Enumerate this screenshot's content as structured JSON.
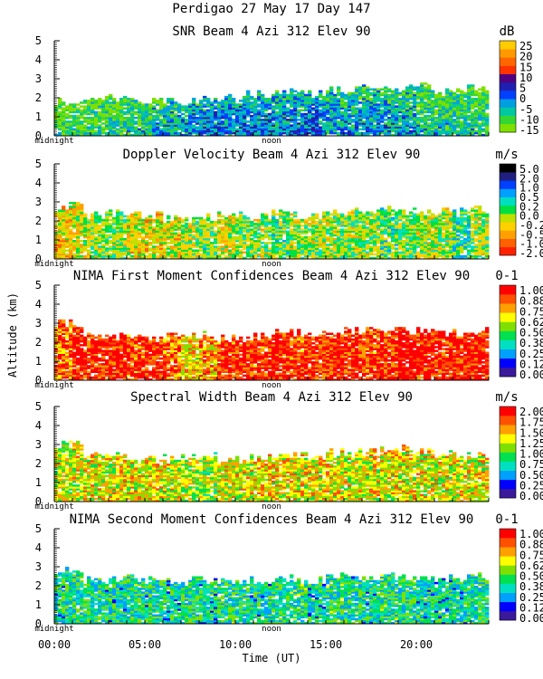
{
  "figure": {
    "title": "Perdigao  27 May 17 Day 147",
    "xlabel": "Time (UT)",
    "ylabel": "Altitude (km)",
    "x_ticks": [
      "00:00",
      "05:00",
      "10:00",
      "15:00",
      "20:00"
    ],
    "x_tick_hours": [
      0,
      5,
      10,
      15,
      20
    ],
    "x_range_hours": [
      0,
      24
    ],
    "y_ticks": [
      "0",
      "1",
      "2",
      "3",
      "4",
      "5"
    ],
    "midnight_label": "midnight",
    "noon_label": "noon"
  },
  "colors": {
    "white": "#ffffff",
    "black": "#000000",
    "palette_snr": [
      "#7fe000",
      "#33d633",
      "#00c8a0",
      "#00a0e0",
      "#0040ff",
      "#2020b0",
      "#500080",
      "#ff3300",
      "#ff6600",
      "#ff9900",
      "#ffcc00"
    ],
    "palette_conf": [
      "#3a1a9a",
      "#0000ff",
      "#00a0ff",
      "#00e0c0",
      "#00e050",
      "#7fe000",
      "#ffff00",
      "#ffa000",
      "#ff5000",
      "#ff0000"
    ],
    "palette_vel": [
      "#ff2000",
      "#ff6000",
      "#ffa000",
      "#ffd000",
      "#c0e000",
      "#00e040",
      "#00e0c0",
      "#00a0ff",
      "#0040ff",
      "#202080",
      "#000000"
    ],
    "palette_sw": [
      "#3a1a9a",
      "#0000ff",
      "#00a0ff",
      "#00e0c0",
      "#00e050",
      "#7fe000",
      "#ffff00",
      "#ffa000",
      "#ff5000",
      "#ff0000"
    ]
  },
  "chart_data": [
    {
      "type": "heatmap",
      "title": "SNR Beam 4 Azi 312 Elev 90",
      "unit": "dB",
      "palette": "palette_snr",
      "colorbar_labels": [
        "25",
        "20",
        "15",
        "10",
        "5",
        "0",
        "-5",
        "-10",
        "-15"
      ],
      "ylim": [
        0,
        5
      ],
      "top_km": [
        1.8,
        1.9,
        2.0,
        1.9,
        1.8,
        1.9,
        2.0,
        2.2,
        2.3,
        2.2,
        2.4,
        2.6,
        2.5,
        2.6,
        2.5,
        2.5
      ],
      "mean_levels": [
        1.0,
        1.3,
        1.6,
        1.8,
        2.0,
        2.4,
        2.8,
        3.4,
        3.6,
        3.5,
        3.8,
        3.6,
        3.4,
        3.6,
        3.9,
        3.3,
        3.1,
        3.2,
        3.1,
        3.2,
        2.3,
        2.2,
        2.1,
        2.0
      ]
    },
    {
      "type": "heatmap",
      "title": "Doppler Velocity Beam 4 Azi 312 Elev 90",
      "unit": "m/s",
      "palette": "palette_vel",
      "colorbar_labels": [
        "5.0",
        "2.0",
        "1.0",
        "0.5",
        "0.2",
        "0.0",
        "-0.2",
        "-0.5",
        "-1.0",
        "-2.0"
      ],
      "ylim": [
        0,
        5
      ],
      "top_km": [
        2.8,
        2.3,
        2.4,
        2.3,
        2.1,
        2.2,
        2.3,
        2.2,
        2.4,
        2.3,
        2.4,
        2.5,
        2.6,
        2.5,
        2.5,
        2.6
      ],
      "mean_levels": [
        3.0,
        3.6,
        4.4,
        4.4,
        3.3,
        3.2,
        3.4,
        4.0,
        4.6,
        3.7,
        4.4,
        4.3,
        4.7,
        4.0,
        4.2,
        4.3,
        4.2,
        4.3,
        5.0,
        4.4,
        4.0,
        4.1,
        5.4,
        4.3
      ]
    },
    {
      "type": "heatmap",
      "title": "NIMA First Moment Confidences Beam 4 Azi 312 Elev 90",
      "unit": "0-1",
      "palette": "palette_conf",
      "colorbar_labels": [
        "1.00",
        "0.88",
        "0.75",
        "0.62",
        "0.50",
        "0.38",
        "0.25",
        "0.12",
        "0.00"
      ],
      "ylim": [
        0,
        5
      ],
      "top_km": [
        3.0,
        2.4,
        2.3,
        2.2,
        2.3,
        2.4,
        2.2,
        2.3,
        2.5,
        2.4,
        2.6,
        2.6,
        2.7,
        2.6,
        2.5,
        2.6
      ],
      "mean_levels": [
        7.5,
        8.8,
        8.9,
        9.0,
        8.1,
        8.6,
        7.7,
        6.4,
        7.0,
        8.3,
        8.5,
        8.4,
        9.1,
        8.4,
        8.3,
        8.9,
        8.6,
        8.4,
        8.6,
        9.4,
        8.9,
        8.6,
        9.1,
        8.9
      ]
    },
    {
      "type": "heatmap",
      "title": "Spectral Width Beam 4 Azi 312 Elev 90",
      "unit": "m/s",
      "palette": "palette_sw",
      "colorbar_labels": [
        "2.00",
        "1.75",
        "1.50",
        "1.25",
        "1.00",
        "0.75",
        "0.50",
        "0.25",
        "0.00"
      ],
      "ylim": [
        0,
        5
      ],
      "top_km": [
        3.0,
        2.5,
        2.4,
        2.2,
        2.3,
        2.4,
        2.2,
        2.3,
        2.5,
        2.4,
        2.6,
        2.6,
        2.8,
        2.6,
        2.5,
        2.4
      ],
      "mean_levels": [
        5.5,
        5.8,
        6.0,
        5.8,
        5.9,
        6.1,
        5.7,
        5.4,
        5.0,
        5.8,
        6.0,
        6.4,
        6.2,
        6.0,
        6.1,
        6.3,
        5.9,
        6.0,
        5.8,
        6.0,
        5.9,
        5.8,
        5.9,
        6.0
      ]
    },
    {
      "type": "heatmap",
      "title": "NIMA Second Moment Confidences Beam 4 Azi 312 Elev 90",
      "unit": "0-1",
      "palette": "palette_conf",
      "colorbar_labels": [
        "1.00",
        "0.88",
        "0.75",
        "0.62",
        "0.50",
        "0.38",
        "0.25",
        "0.12",
        "0.00"
      ],
      "ylim": [
        0,
        5
      ],
      "top_km": [
        2.8,
        2.3,
        2.4,
        2.3,
        2.2,
        2.3,
        2.2,
        2.3,
        2.4,
        2.3,
        2.5,
        2.4,
        2.5,
        2.5,
        2.4,
        2.5
      ],
      "mean_levels": [
        3.3,
        3.5,
        3.4,
        3.2,
        3.6,
        3.4,
        3.1,
        3.5,
        3.3,
        3.6,
        3.4,
        3.2,
        3.5,
        3.7,
        3.3,
        3.6,
        3.4,
        3.3,
        3.6,
        3.5,
        3.4,
        3.2,
        3.3,
        3.5
      ]
    }
  ]
}
